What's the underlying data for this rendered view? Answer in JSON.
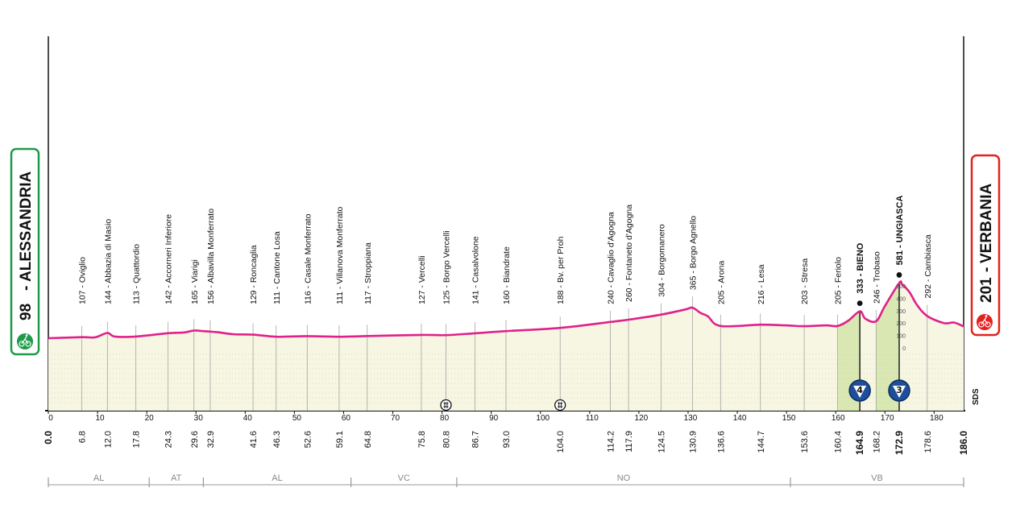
{
  "chart_data": {
    "type": "area",
    "title": "",
    "xlabel": "",
    "ylabel": "",
    "xlim": [
      0,
      186.0
    ],
    "colors": {
      "profile_line": "#e0218a",
      "profile_fill": "#f6f6e3",
      "climb_fill": "#d9e8b3",
      "start_badge": "#1e9a4a",
      "finish_badge": "#e3221f",
      "kom_badge": "#1d4f9c"
    },
    "start": {
      "altitude": "98",
      "name": "ALESSANDRIA"
    },
    "finish": {
      "altitude": "201",
      "name": "VERBANIA"
    },
    "km_ticks": [
      "0",
      "10",
      "20",
      "30",
      "40",
      "50",
      "60",
      "70",
      "80",
      "90",
      "100",
      "110",
      "120",
      "130",
      "140",
      "150",
      "160",
      "170",
      "180"
    ],
    "elevation_profile": {
      "km": [
        0,
        6.8,
        9.5,
        12.0,
        13.5,
        17.8,
        24.3,
        27.5,
        29.6,
        31.5,
        32.9,
        34.5,
        37.5,
        41.6,
        46.3,
        52.6,
        59.1,
        64.8,
        75.8,
        80.8,
        86.7,
        93.0,
        104.0,
        114.2,
        117.9,
        124.5,
        129.5,
        130.9,
        132.5,
        134.0,
        136.6,
        144.7,
        150.0,
        153.6,
        158.0,
        160.4,
        162.5,
        164.9,
        166.0,
        168.2,
        170.0,
        172.9,
        173.5,
        175.0,
        176.5,
        178.6,
        182.0,
        184.0,
        186.0
      ],
      "alt": [
        98,
        107,
        106,
        144,
        113,
        113,
        142,
        148,
        165,
        160,
        156,
        150,
        133,
        129,
        111,
        116,
        111,
        117,
        127,
        125,
        141,
        160,
        188,
        240,
        260,
        304,
        350,
        365,
        320,
        290,
        205,
        216,
        210,
        203,
        210,
        205,
        250,
        333,
        270,
        246,
        380,
        581,
        570,
        500,
        390,
        292,
        230,
        235,
        201
      ]
    },
    "waypoints": [
      {
        "km": 6.8,
        "label": "107 - Oviglio"
      },
      {
        "km": 12.0,
        "label": "144 - Abbazia di Masio"
      },
      {
        "km": 17.8,
        "label": "113 - Quattordio"
      },
      {
        "km": 24.3,
        "label": "142 - Accorneri Inferiore"
      },
      {
        "km": 29.6,
        "label": "165 - Viarigi"
      },
      {
        "km": 32.9,
        "label": "156 - Albavilla Monferrato"
      },
      {
        "km": 41.6,
        "label": "129 - Roncaglia"
      },
      {
        "km": 46.3,
        "label": "111 - Cantone Losa"
      },
      {
        "km": 52.6,
        "label": "116 - Casale Monferrato"
      },
      {
        "km": 59.1,
        "label": "111 - Villanova Monferrato"
      },
      {
        "km": 64.8,
        "label": "117 - Stroppiana"
      },
      {
        "km": 75.8,
        "label": "127 - Vercelli"
      },
      {
        "km": 80.8,
        "label": "125 - Borgo Vercelli"
      },
      {
        "km": 86.7,
        "label": "141 - Casalvolone"
      },
      {
        "km": 93.0,
        "label": "160 - Biandrate"
      },
      {
        "km": 104.0,
        "label": "188 - Bv. per Proh"
      },
      {
        "km": 114.2,
        "label": "240 - Cavaglio d'Agogna"
      },
      {
        "km": 117.9,
        "label": "260 - Fontaneto d'Agogna"
      },
      {
        "km": 124.5,
        "label": "304 - Borgomanero"
      },
      {
        "km": 130.9,
        "label": "365 - Borgo Agnello"
      },
      {
        "km": 136.6,
        "label": "205 - Arona"
      },
      {
        "km": 144.7,
        "label": "216 - Lesa"
      },
      {
        "km": 153.6,
        "label": "203 - Stresa"
      },
      {
        "km": 160.4,
        "label": "205 - Feriolo"
      },
      {
        "km": 164.9,
        "label": "333 - BIENO",
        "bold": true
      },
      {
        "km": 168.2,
        "label": "246 - Trobaso"
      },
      {
        "km": 172.9,
        "label": "581 - UNGIASCA",
        "bold": true
      },
      {
        "km": 178.6,
        "label": "292 - Cambiasca"
      }
    ],
    "distances": [
      "0.0",
      "6.8",
      "12.0",
      "17.8",
      "24.3",
      "29.6",
      "32.9",
      "41.6",
      "46.3",
      "52.6",
      "59.1",
      "64.8",
      "75.8",
      "80.8",
      "86.7",
      "93.0",
      "104.0",
      "114.2",
      "117.9",
      "124.5",
      "130.9",
      "136.6",
      "144.7",
      "153.6",
      "160.4",
      "164.9",
      "168.2",
      "172.9",
      "178.6",
      "186.0"
    ],
    "bold_distances": [
      "0.0",
      "164.9",
      "172.9",
      "186.0"
    ],
    "climbs": [
      {
        "start_km": 160.4,
        "km": 164.9,
        "category": "4"
      },
      {
        "start_km": 168.2,
        "km": 172.9,
        "category": "3"
      }
    ],
    "intermediate_sprints": [
      80.8,
      104.0
    ],
    "altitude_scale": [
      "500",
      "400",
      "300",
      "200",
      "100",
      "0"
    ],
    "provinces": [
      {
        "code": "AL",
        "from_km": 0,
        "to_km": 20.5
      },
      {
        "code": "AT",
        "from_km": 20.5,
        "to_km": 31.5
      },
      {
        "code": "AL",
        "from_km": 31.5,
        "to_km": 61.5
      },
      {
        "code": "VC",
        "from_km": 61.5,
        "to_km": 83.0
      },
      {
        "code": "NO",
        "from_km": 83.0,
        "to_km": 150.8
      },
      {
        "code": "VB",
        "from_km": 150.8,
        "to_km": 186.0
      }
    ],
    "sds_label": "SDS"
  }
}
